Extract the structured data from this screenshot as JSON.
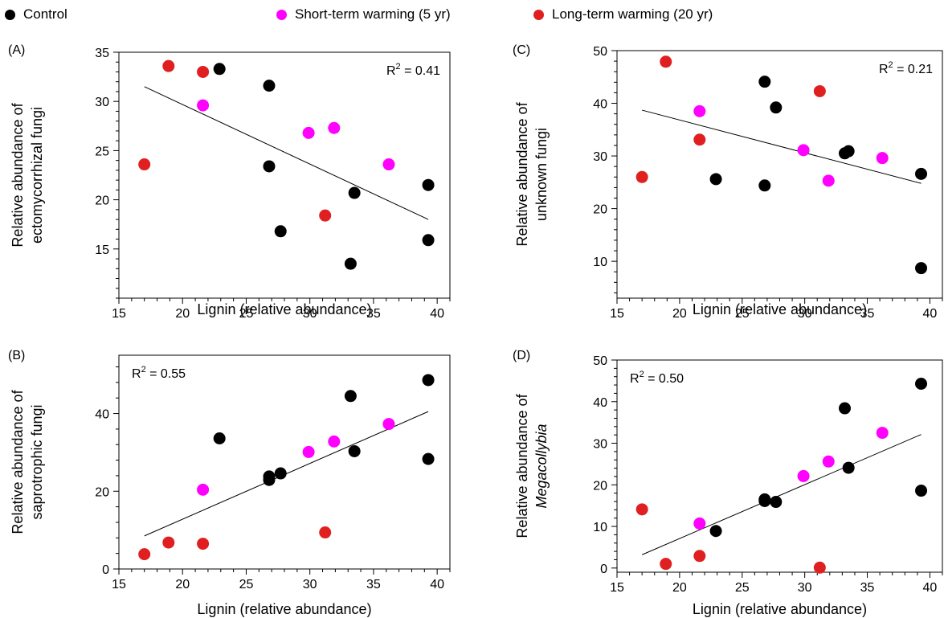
{
  "legend": {
    "items": [
      {
        "label": "Control",
        "color": "#000000"
      },
      {
        "label": "Short-term warming (5 yr)",
        "color": "#ff00ff"
      },
      {
        "label": "Long-term warming (20 yr)",
        "color": "#e02020"
      }
    ]
  },
  "chart_data": [
    {
      "type": "scatter",
      "panel": "(A)",
      "xlabel": "Lignin (relative abundance)",
      "ylabel": [
        "Relative abundance of",
        "ectomycorrhizal fungi"
      ],
      "xlim": [
        15,
        41
      ],
      "ylim": [
        10,
        35
      ],
      "xticks": [
        15,
        20,
        25,
        30,
        35,
        40
      ],
      "yticks": [
        15,
        20,
        25,
        30,
        35
      ],
      "annotation": "R2 = 0.41",
      "annotation_position": "top-right",
      "trendline": [
        [
          17,
          31.5
        ],
        [
          39.3,
          18.0
        ]
      ],
      "series": [
        {
          "name": "Control",
          "color": "#000000",
          "points": [
            [
              22.9,
              33.3
            ],
            [
              26.8,
              31.6
            ],
            [
              26.8,
              23.4
            ],
            [
              27.7,
              16.8
            ],
            [
              33.2,
              13.5
            ],
            [
              33.5,
              20.7
            ],
            [
              39.3,
              21.5
            ],
            [
              39.3,
              15.9
            ]
          ]
        },
        {
          "name": "Short-term warming (5 yr)",
          "color": "#ff00ff",
          "points": [
            [
              21.6,
              29.6
            ],
            [
              29.9,
              26.8
            ],
            [
              31.9,
              27.3
            ],
            [
              36.2,
              23.6
            ]
          ]
        },
        {
          "name": "Long-term warming (20 yr)",
          "color": "#e02020",
          "points": [
            [
              17.0,
              23.6
            ],
            [
              18.9,
              33.6
            ],
            [
              21.6,
              33.0
            ],
            [
              31.2,
              18.4
            ]
          ]
        }
      ]
    },
    {
      "type": "scatter",
      "panel": "(C)",
      "xlabel": "Lignin (relative abundance)",
      "ylabel": [
        "Relative abundance of",
        "unknown fungi"
      ],
      "xlim": [
        15,
        41
      ],
      "ylim": [
        3,
        50
      ],
      "xticks": [
        15,
        20,
        25,
        30,
        35,
        40
      ],
      "yticks": [
        10,
        20,
        30,
        40,
        50
      ],
      "annotation": "R2 = 0.21",
      "annotation_position": "top-right",
      "trendline": [
        [
          17,
          38.7
        ],
        [
          39.3,
          24.8
        ]
      ],
      "series": [
        {
          "name": "Control",
          "color": "#000000",
          "points": [
            [
              22.9,
              25.6
            ],
            [
              26.8,
              44.1
            ],
            [
              26.8,
              24.4
            ],
            [
              27.7,
              39.2
            ],
            [
              33.2,
              30.5
            ],
            [
              33.5,
              30.9
            ],
            [
              39.3,
              26.6
            ],
            [
              39.3,
              8.7
            ]
          ]
        },
        {
          "name": "Short-term warming (5 yr)",
          "color": "#ff00ff",
          "points": [
            [
              21.6,
              38.5
            ],
            [
              29.9,
              31.1
            ],
            [
              31.9,
              25.3
            ],
            [
              36.2,
              29.6
            ]
          ]
        },
        {
          "name": "Long-term warming (20 yr)",
          "color": "#e02020",
          "points": [
            [
              17.0,
              26.0
            ],
            [
              18.9,
              47.9
            ],
            [
              21.6,
              33.1
            ],
            [
              31.2,
              42.3
            ]
          ]
        }
      ]
    },
    {
      "type": "scatter",
      "panel": "(B)",
      "xlabel": "Lignin (relative abundance)",
      "ylabel": [
        "Relative abundance of",
        "saprotrophic fungi"
      ],
      "xlim": [
        15,
        41
      ],
      "ylim": [
        0,
        55
      ],
      "xticks": [
        15,
        20,
        25,
        30,
        35,
        40
      ],
      "yticks": [
        0,
        20,
        40
      ],
      "annotation": "R2 = 0.55",
      "annotation_position": "top-left",
      "trendline": [
        [
          17,
          8.5
        ],
        [
          39.3,
          40.5
        ]
      ],
      "series": [
        {
          "name": "Control",
          "color": "#000000",
          "points": [
            [
              22.9,
              33.6
            ],
            [
              26.8,
              23.8
            ],
            [
              26.8,
              22.9
            ],
            [
              27.7,
              24.6
            ],
            [
              33.2,
              44.5
            ],
            [
              33.5,
              30.3
            ],
            [
              39.3,
              48.6
            ],
            [
              39.3,
              28.3
            ]
          ]
        },
        {
          "name": "Short-term warming (5 yr)",
          "color": "#ff00ff",
          "points": [
            [
              21.6,
              20.4
            ],
            [
              29.9,
              30.1
            ],
            [
              31.9,
              32.8
            ],
            [
              36.2,
              37.3
            ]
          ]
        },
        {
          "name": "Long-term warming (20 yr)",
          "color": "#e02020",
          "points": [
            [
              17.0,
              3.8
            ],
            [
              18.9,
              6.8
            ],
            [
              21.6,
              6.5
            ],
            [
              31.2,
              9.4
            ]
          ]
        }
      ]
    },
    {
      "type": "scatter",
      "panel": "(D)",
      "xlabel": "Lignin (relative abundance)",
      "ylabel": [
        "Relative abundance of",
        "Megacollybia"
      ],
      "ylabel_italic_line": 1,
      "xlim": [
        15,
        41
      ],
      "ylim": [
        -1,
        50
      ],
      "xticks": [
        15,
        20,
        25,
        30,
        35,
        40
      ],
      "yticks": [
        0,
        10,
        20,
        30,
        40,
        50
      ],
      "annotation": "R2 = 0.50",
      "annotation_position": "top-left",
      "trendline": [
        [
          17,
          3.2
        ],
        [
          39.3,
          32.1
        ]
      ],
      "series": [
        {
          "name": "Control",
          "color": "#000000",
          "points": [
            [
              22.9,
              8.9
            ],
            [
              26.8,
              16.5
            ],
            [
              26.8,
              16.1
            ],
            [
              27.7,
              15.9
            ],
            [
              33.2,
              38.4
            ],
            [
              33.5,
              24.1
            ],
            [
              39.3,
              44.3
            ],
            [
              39.3,
              18.6
            ]
          ]
        },
        {
          "name": "Short-term warming (5 yr)",
          "color": "#ff00ff",
          "points": [
            [
              21.6,
              10.7
            ],
            [
              29.9,
              22.1
            ],
            [
              31.9,
              25.6
            ],
            [
              36.2,
              32.5
            ]
          ]
        },
        {
          "name": "Long-term warming (20 yr)",
          "color": "#e02020",
          "points": [
            [
              17.0,
              14.1
            ],
            [
              18.9,
              1.0
            ],
            [
              21.6,
              2.9
            ],
            [
              31.2,
              0.1
            ]
          ]
        }
      ]
    }
  ]
}
